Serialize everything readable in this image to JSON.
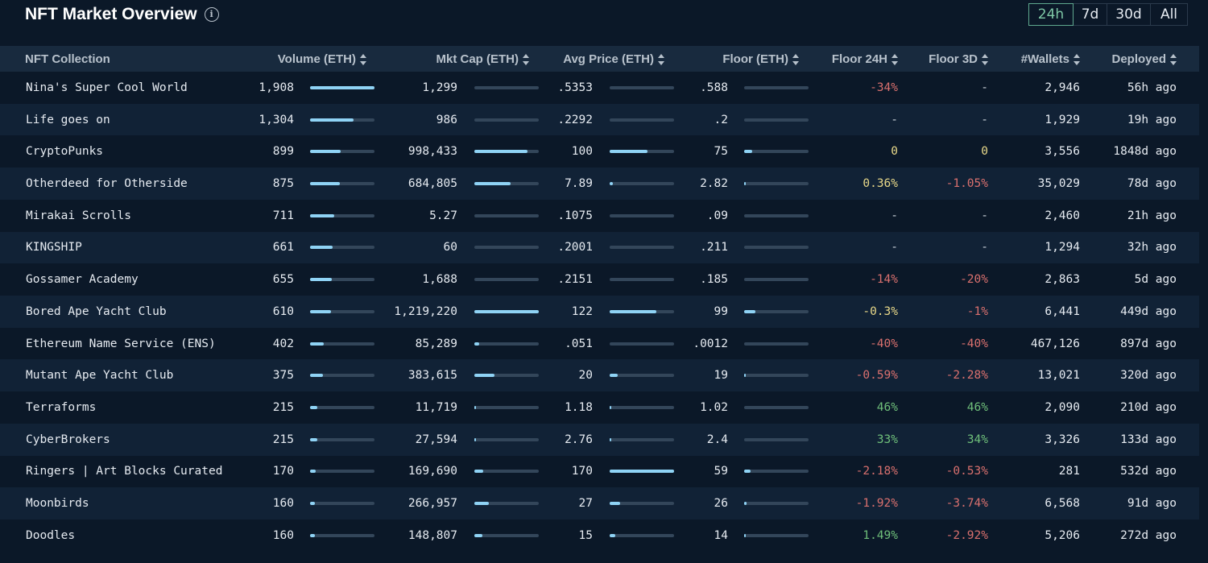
{
  "header": {
    "title": "NFT Market Overview"
  },
  "timeframes": [
    "24h",
    "7d",
    "30d",
    "All"
  ],
  "active_timeframe": "24h",
  "columns": [
    "NFT Collection",
    "Volume (ETH)",
    "Mkt Cap (ETH)",
    "Avg Price (ETH)",
    "Floor (ETH)",
    "Floor 24H",
    "Floor 3D",
    "#Wallets",
    "Deployed"
  ],
  "rows": [
    {
      "name": "Nina's Super Cool World",
      "volume": "1,908",
      "volume_pct": 1.0,
      "mktcap": "1,299",
      "mktcap_pct": 0.0,
      "avg": ".5353",
      "avg_pct": 0.0,
      "floor": ".588",
      "floor_pct": 0.0,
      "f24": "-34%",
      "f24_s": "neg",
      "f3d": "-",
      "f3d_s": "dash",
      "wallets": "2,946",
      "deployed": "56h ago"
    },
    {
      "name": "Life goes on",
      "volume": "1,304",
      "volume_pct": 0.68,
      "mktcap": "986",
      "mktcap_pct": 0.0,
      "avg": ".2292",
      "avg_pct": 0.0,
      "floor": ".2",
      "floor_pct": 0.0,
      "f24": "-",
      "f24_s": "dash",
      "f3d": "-",
      "f3d_s": "dash",
      "wallets": "1,929",
      "deployed": "19h ago"
    },
    {
      "name": "CryptoPunks",
      "volume": "899",
      "volume_pct": 0.47,
      "mktcap": "998,433",
      "mktcap_pct": 0.82,
      "avg": "100",
      "avg_pct": 0.59,
      "floor": "75",
      "floor_pct": 0.13,
      "f24": "0",
      "f24_s": "zero",
      "f3d": "0",
      "f3d_s": "zero",
      "wallets": "3,556",
      "deployed": "1848d ago"
    },
    {
      "name": "Otherdeed for Otherside",
      "volume": "875",
      "volume_pct": 0.46,
      "mktcap": "684,805",
      "mktcap_pct": 0.56,
      "avg": "7.89",
      "avg_pct": 0.05,
      "floor": "2.82",
      "floor_pct": 0.01,
      "f24": "0.36%",
      "f24_s": "zero",
      "f3d": "-1.05%",
      "f3d_s": "neg",
      "wallets": "35,029",
      "deployed": "78d ago"
    },
    {
      "name": "Mirakai Scrolls",
      "volume": "711",
      "volume_pct": 0.37,
      "mktcap": "5.27",
      "mktcap_pct": 0.0,
      "avg": ".1075",
      "avg_pct": 0.0,
      "floor": ".09",
      "floor_pct": 0.0,
      "f24": "-",
      "f24_s": "dash",
      "f3d": "-",
      "f3d_s": "dash",
      "wallets": "2,460",
      "deployed": "21h ago"
    },
    {
      "name": "KINGSHIP",
      "volume": "661",
      "volume_pct": 0.35,
      "mktcap": "60",
      "mktcap_pct": 0.0,
      "avg": ".2001",
      "avg_pct": 0.0,
      "floor": ".211",
      "floor_pct": 0.0,
      "f24": "-",
      "f24_s": "dash",
      "f3d": "-",
      "f3d_s": "dash",
      "wallets": "1,294",
      "deployed": "32h ago"
    },
    {
      "name": "Gossamer Academy",
      "volume": "655",
      "volume_pct": 0.34,
      "mktcap": "1,688",
      "mktcap_pct": 0.0,
      "avg": ".2151",
      "avg_pct": 0.0,
      "floor": ".185",
      "floor_pct": 0.0,
      "f24": "-14%",
      "f24_s": "neg",
      "f3d": "-20%",
      "f3d_s": "neg",
      "wallets": "2,863",
      "deployed": "5d ago"
    },
    {
      "name": "Bored Ape Yacht Club",
      "volume": "610",
      "volume_pct": 0.32,
      "mktcap": "1,219,220",
      "mktcap_pct": 1.0,
      "avg": "122",
      "avg_pct": 0.72,
      "floor": "99",
      "floor_pct": 0.17,
      "f24": "-0.3%",
      "f24_s": "zero",
      "f3d": "-1%",
      "f3d_s": "neg",
      "wallets": "6,441",
      "deployed": "449d ago"
    },
    {
      "name": "Ethereum Name Service (ENS)",
      "volume": "402",
      "volume_pct": 0.21,
      "mktcap": "85,289",
      "mktcap_pct": 0.07,
      "avg": ".051",
      "avg_pct": 0.0,
      "floor": ".0012",
      "floor_pct": 0.0,
      "f24": "-40%",
      "f24_s": "neg",
      "f3d": "-40%",
      "f3d_s": "neg",
      "wallets": "467,126",
      "deployed": "897d ago"
    },
    {
      "name": "Mutant Ape Yacht Club",
      "volume": "375",
      "volume_pct": 0.2,
      "mktcap": "383,615",
      "mktcap_pct": 0.31,
      "avg": "20",
      "avg_pct": 0.12,
      "floor": "19",
      "floor_pct": 0.03,
      "f24": "-0.59%",
      "f24_s": "neg",
      "f3d": "-2.28%",
      "f3d_s": "neg",
      "wallets": "13,021",
      "deployed": "320d ago"
    },
    {
      "name": "Terraforms",
      "volume": "215",
      "volume_pct": 0.11,
      "mktcap": "11,719",
      "mktcap_pct": 0.01,
      "avg": "1.18",
      "avg_pct": 0.01,
      "floor": "1.02",
      "floor_pct": 0.0,
      "f24": "46%",
      "f24_s": "pos",
      "f3d": "46%",
      "f3d_s": "pos",
      "wallets": "2,090",
      "deployed": "210d ago"
    },
    {
      "name": "CyberBrokers",
      "volume": "215",
      "volume_pct": 0.11,
      "mktcap": "27,594",
      "mktcap_pct": 0.02,
      "avg": "2.76",
      "avg_pct": 0.02,
      "floor": "2.4",
      "floor_pct": 0.0,
      "f24": "33%",
      "f24_s": "pos",
      "f3d": "34%",
      "f3d_s": "pos",
      "wallets": "3,326",
      "deployed": "133d ago"
    },
    {
      "name": "Ringers | Art Blocks Curated",
      "volume": "170",
      "volume_pct": 0.09,
      "mktcap": "169,690",
      "mktcap_pct": 0.14,
      "avg": "170",
      "avg_pct": 1.0,
      "floor": "59",
      "floor_pct": 0.1,
      "f24": "-2.18%",
      "f24_s": "neg",
      "f3d": "-0.53%",
      "f3d_s": "neg",
      "wallets": "281",
      "deployed": "532d ago"
    },
    {
      "name": "Moonbirds",
      "volume": "160",
      "volume_pct": 0.08,
      "mktcap": "266,957",
      "mktcap_pct": 0.22,
      "avg": "27",
      "avg_pct": 0.16,
      "floor": "26",
      "floor_pct": 0.04,
      "f24": "-1.92%",
      "f24_s": "neg",
      "f3d": "-3.74%",
      "f3d_s": "neg",
      "wallets": "6,568",
      "deployed": "91d ago"
    },
    {
      "name": "Doodles",
      "volume": "160",
      "volume_pct": 0.08,
      "mktcap": "148,807",
      "mktcap_pct": 0.12,
      "avg": "15",
      "avg_pct": 0.09,
      "floor": "14",
      "floor_pct": 0.02,
      "f24": "1.49%",
      "f24_s": "pos",
      "f3d": "-2.92%",
      "f3d_s": "neg",
      "wallets": "5,206",
      "deployed": "272d ago"
    }
  ]
}
